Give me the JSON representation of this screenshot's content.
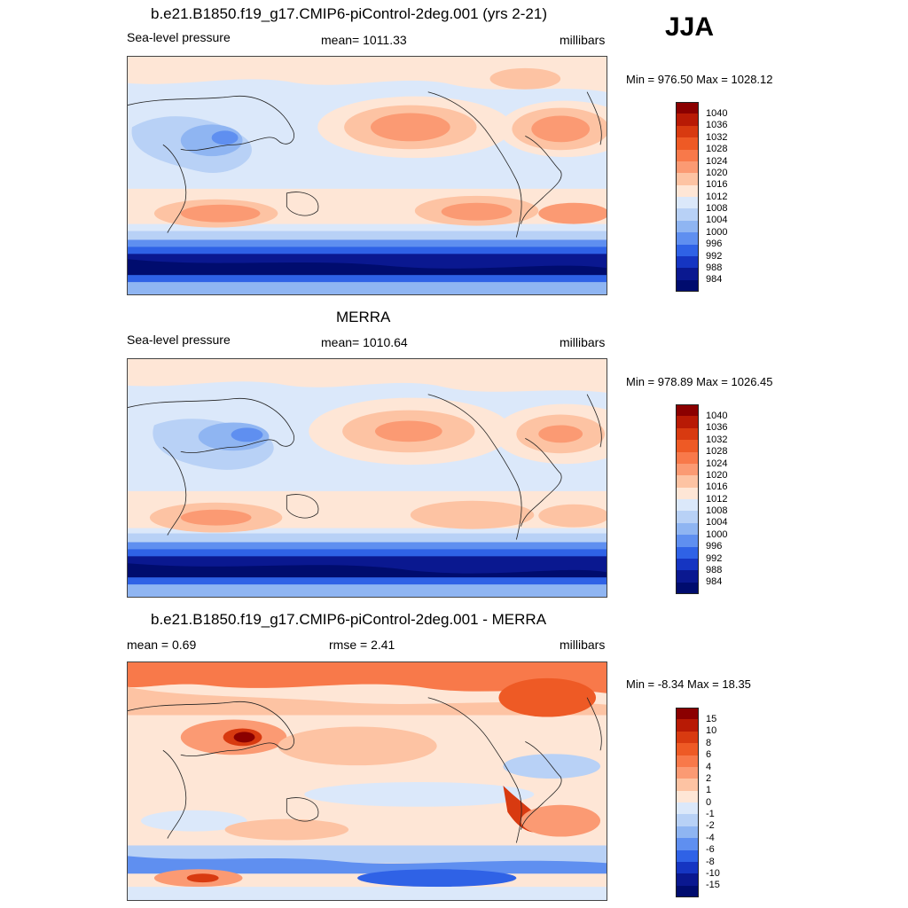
{
  "season": "JJA",
  "panels": [
    {
      "title": "b.e21.B1850.f19_g17.CMIP6-piControl-2deg.001 (yrs 2-21)",
      "left_label": "Sea-level pressure",
      "center_label": "mean= 1011.33",
      "right_label": "millibars",
      "minmax": "Min = 976.50 Max = 1028.12"
    },
    {
      "title": "MERRA",
      "left_label": "Sea-level pressure",
      "center_label": "mean= 1010.64",
      "right_label": "millibars",
      "minmax": "Min = 978.89 Max = 1026.45"
    },
    {
      "title": "b.e21.B1850.f19_g17.CMIP6-piControl-2deg.001 - MERRA",
      "left_label": "mean =   0.69",
      "center_label": "rmse =   2.41",
      "right_label": "millibars",
      "minmax": "Min =  -8.34 Max =  18.35"
    }
  ],
  "colorbars": {
    "slp": {
      "labels": [
        "1040",
        "1036",
        "1032",
        "1028",
        "1024",
        "1020",
        "1016",
        "1012",
        "1008",
        "1004",
        "1000",
        "996",
        "992",
        "988",
        "984"
      ],
      "colors": [
        "#8b0000",
        "#b81a05",
        "#d83a10",
        "#ee5a25",
        "#f8794a",
        "#fb9a73",
        "#fdc3a3",
        "#fee6d6",
        "#dbe8fa",
        "#b8d1f6",
        "#8fb5f2",
        "#5f8ff0",
        "#2f62e6",
        "#1535c2",
        "#0a1890",
        "#000c6e"
      ]
    },
    "diff": {
      "labels": [
        "15",
        "10",
        "8",
        "6",
        "4",
        "2",
        "1",
        "0",
        "-1",
        "-2",
        "-4",
        "-6",
        "-8",
        "-10",
        "-15"
      ],
      "colors": [
        "#8b0000",
        "#b81a05",
        "#d83a10",
        "#ee5a25",
        "#f8794a",
        "#fb9a73",
        "#fdc3a3",
        "#fee6d6",
        "#dbe8fa",
        "#b8d1f6",
        "#8fb5f2",
        "#5f8ff0",
        "#2f62e6",
        "#1535c2",
        "#0a1890",
        "#000c6e"
      ]
    }
  }
}
